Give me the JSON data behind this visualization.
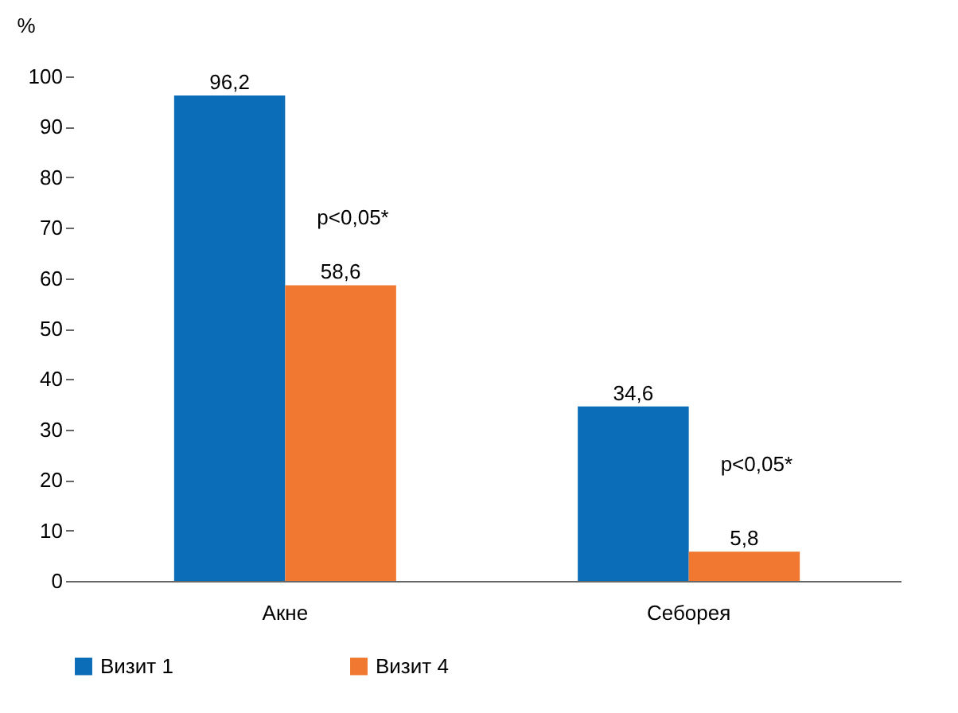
{
  "chart_data": {
    "type": "bar",
    "ylabel": "%",
    "categories": [
      "Акне",
      "Себорея"
    ],
    "series": [
      {
        "name": "Визит 1",
        "color": "#0b6cb8",
        "values": [
          96.2,
          34.6
        ],
        "value_labels": [
          "96,2",
          "34,6"
        ]
      },
      {
        "name": "Визит 4",
        "color": "#f07830",
        "values": [
          58.6,
          5.8
        ],
        "value_labels": [
          "58,6",
          "5,8"
        ]
      }
    ],
    "ylim": [
      0,
      100
    ],
    "yticks": [
      0,
      10,
      20,
      30,
      40,
      50,
      60,
      70,
      80,
      90,
      100
    ],
    "legend": "bottom",
    "annotations": [
      {
        "text": "p<0,05*",
        "x": "Акне",
        "y": 72
      },
      {
        "text": "p<0,05*",
        "x": "Себорея",
        "y": 23
      }
    ]
  }
}
